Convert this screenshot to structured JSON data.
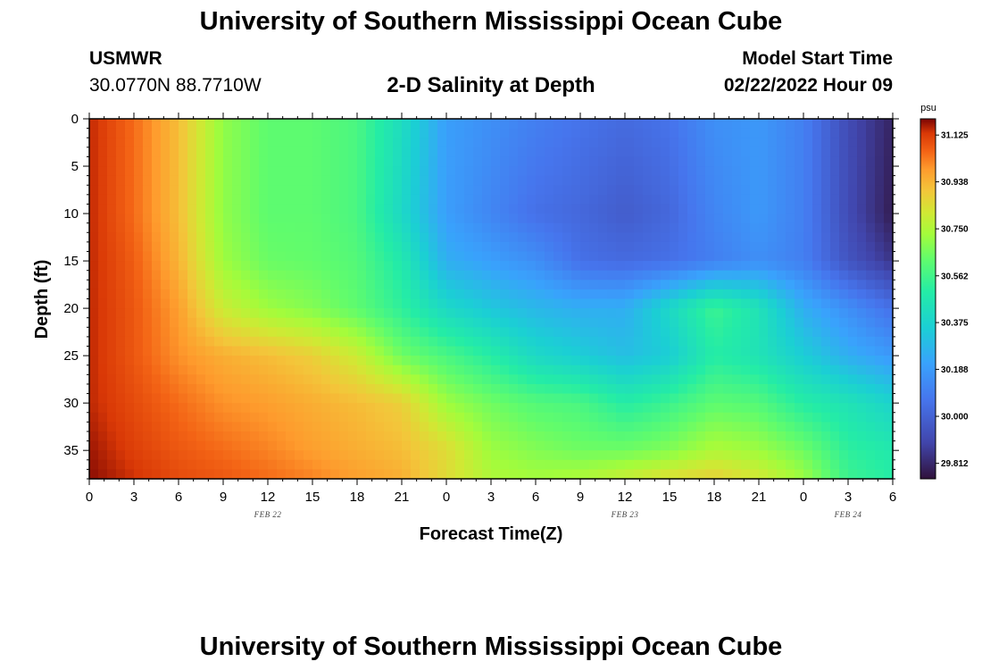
{
  "header": {
    "title": "University of Southern Mississippi Ocean Cube",
    "station": "USMWR",
    "coords": "30.0770N  88.7710W",
    "model_start_label": "Model Start Time",
    "model_start_value": "02/22/2022 Hour 09"
  },
  "footer": {
    "title": "University of Southern Mississippi Ocean Cube"
  },
  "chart_data": {
    "type": "heatmap",
    "title": "2-D Salinity at Depth",
    "xlabel": "Forecast Time(Z)",
    "ylabel": "Depth (ft)",
    "x_range_hours": [
      0,
      54
    ],
    "x_tick_hours": [
      0,
      3,
      6,
      9,
      12,
      15,
      18,
      21,
      24,
      27,
      30,
      33,
      36,
      39,
      42,
      45,
      48,
      51,
      54
    ],
    "x_tick_labels": [
      "0",
      "3",
      "6",
      "9",
      "12",
      "15",
      "18",
      "21",
      "0",
      "3",
      "6",
      "9",
      "12",
      "15",
      "18",
      "21",
      "0",
      "3",
      "6"
    ],
    "date_labels": [
      {
        "text": "FEB 22",
        "hour": 12
      },
      {
        "text": "FEB 23",
        "hour": 36
      },
      {
        "text": "FEB 24",
        "hour": 51
      }
    ],
    "y_range_ft": [
      0,
      38
    ],
    "y_ticks": [
      0,
      5,
      10,
      15,
      20,
      25,
      30,
      35
    ],
    "y_tick_labels": [
      "0",
      "5",
      "10",
      "15",
      "20",
      "25",
      "30",
      "35"
    ],
    "colorbar": {
      "unit": "psu",
      "min": 29.75,
      "max": 31.19,
      "tick_values": [
        31.125,
        30.938,
        30.75,
        30.562,
        30.375,
        30.188,
        30.0,
        29.812
      ],
      "tick_labels": [
        "31.125",
        "30.938",
        "30.750",
        "30.562",
        "30.375",
        "30.188",
        "30.000",
        "29.812"
      ]
    },
    "field_depths_ft": [
      0,
      10,
      15,
      20,
      25,
      30,
      35,
      38
    ],
    "field_hours": [
      0,
      3,
      6,
      9,
      12,
      15,
      18,
      21,
      24,
      27,
      30,
      33,
      36,
      39,
      42,
      45,
      48,
      51,
      54
    ],
    "salinity_psu": [
      [
        31.15,
        31.05,
        30.92,
        30.7,
        30.62,
        30.62,
        30.58,
        30.42,
        30.2,
        30.15,
        30.1,
        30.06,
        30.03,
        30.06,
        30.15,
        30.18,
        30.1,
        29.92,
        29.8
      ],
      [
        31.15,
        31.05,
        30.92,
        30.7,
        30.62,
        30.62,
        30.58,
        30.4,
        30.2,
        30.12,
        30.05,
        30.02,
        29.98,
        30.02,
        30.12,
        30.18,
        30.1,
        29.92,
        29.78
      ],
      [
        31.15,
        31.07,
        30.94,
        30.72,
        30.64,
        30.63,
        30.6,
        30.48,
        30.25,
        30.2,
        30.15,
        30.05,
        30.03,
        30.05,
        30.1,
        30.15,
        30.1,
        29.95,
        29.85
      ],
      [
        31.15,
        31.08,
        30.98,
        30.8,
        30.72,
        30.68,
        30.62,
        30.52,
        30.4,
        30.33,
        30.28,
        30.25,
        30.25,
        30.4,
        30.55,
        30.45,
        30.25,
        30.15,
        30.05
      ],
      [
        31.15,
        31.08,
        31.0,
        30.95,
        30.92,
        30.88,
        30.8,
        30.65,
        30.58,
        30.5,
        30.4,
        30.35,
        30.3,
        30.35,
        30.5,
        30.45,
        30.35,
        30.25,
        30.18
      ],
      [
        31.15,
        31.1,
        31.05,
        31.0,
        30.98,
        30.95,
        30.92,
        30.88,
        30.72,
        30.65,
        30.6,
        30.58,
        30.5,
        30.55,
        30.62,
        30.6,
        30.5,
        30.45,
        30.38
      ],
      [
        31.17,
        31.12,
        31.08,
        31.05,
        31.02,
        30.98,
        30.95,
        30.92,
        30.85,
        30.72,
        30.68,
        30.65,
        30.65,
        30.68,
        30.75,
        30.72,
        30.65,
        30.52,
        30.48
      ],
      [
        31.18,
        31.14,
        31.1,
        31.08,
        31.05,
        31.02,
        30.98,
        30.95,
        30.85,
        30.75,
        30.73,
        30.75,
        30.8,
        30.85,
        30.88,
        30.82,
        30.72,
        30.55,
        30.5
      ]
    ]
  }
}
